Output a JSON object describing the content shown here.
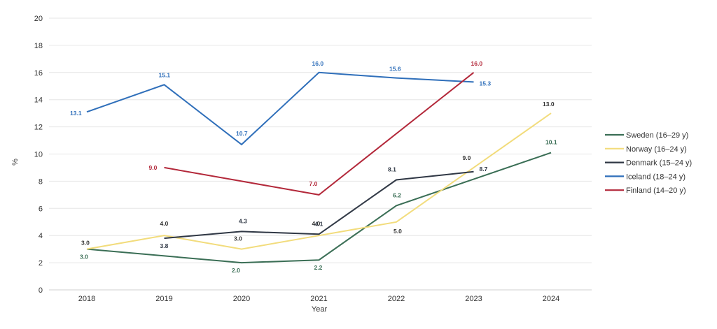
{
  "chart_data": {
    "type": "line",
    "xlabel": "Year",
    "ylabel": "%",
    "ylim": [
      0,
      20
    ],
    "yticks": [
      "0",
      "2",
      "4",
      "6",
      "8",
      "10",
      "12",
      "14",
      "16",
      "18",
      "20"
    ],
    "categories": [
      "2018",
      "2019",
      "2020",
      "2021",
      "2022",
      "2023",
      "2024"
    ],
    "grid": true,
    "legend_position": "right",
    "series": [
      {
        "name": "Sweden (16–29 y)",
        "color": "#3a6e55",
        "values": [
          3.0,
          null,
          2.0,
          2.2,
          6.2,
          null,
          10.1
        ],
        "labels": [
          "3.0",
          null,
          "2.0",
          "2.2",
          "6.2",
          null,
          "10.1"
        ]
      },
      {
        "name": "Norway (16–24 y)",
        "color": "#f2dc7c",
        "values": [
          3.0,
          4.0,
          3.0,
          4.0,
          5.0,
          9.0,
          13.0
        ],
        "labels": [
          "3.0",
          "4.0",
          "3.0",
          "4.0",
          "5.0",
          "9.0",
          "13.0"
        ]
      },
      {
        "name": "Denmark (15–24 y)",
        "color": "#2f3744",
        "values": [
          null,
          3.8,
          4.3,
          4.1,
          8.1,
          8.7,
          null
        ],
        "labels": [
          null,
          "3.8",
          "4.3",
          "4.1",
          "8.1",
          "8.7",
          null
        ]
      },
      {
        "name": "Iceland (18–24 y)",
        "color": "#2f6fba",
        "values": [
          13.1,
          15.1,
          10.7,
          16.0,
          15.6,
          15.3,
          null
        ],
        "labels": [
          "13.1",
          "15.1",
          "10.7",
          "16.0",
          "15.6",
          "15.3",
          null
        ]
      },
      {
        "name": "Finland (14–20 y)",
        "color": "#b3283a",
        "values": [
          null,
          9.0,
          null,
          7.0,
          null,
          16.0,
          null
        ],
        "labels": [
          null,
          "9.0",
          null,
          "7.0",
          null,
          "16.0",
          null
        ]
      }
    ]
  }
}
